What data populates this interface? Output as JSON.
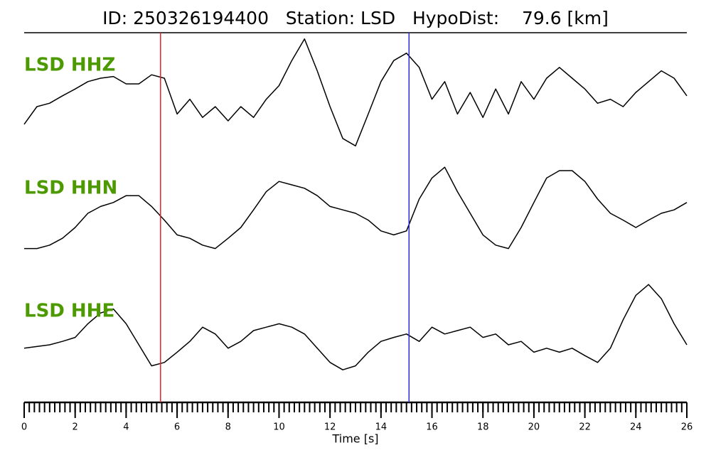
{
  "chart_data": {
    "type": "line",
    "title": "ID: 250326194400   Station: LSD   HypoDist:    79.6 [km]",
    "xlabel": "Time [s]",
    "xlim": [
      0,
      26
    ],
    "xticks": [
      0,
      2,
      4,
      6,
      8,
      10,
      12,
      14,
      16,
      18,
      20,
      22,
      24,
      26
    ],
    "xminorticks": [
      0,
      0.2,
      0.4,
      0.6,
      0.8,
      1,
      1.2,
      1.4,
      1.6,
      1.8,
      2,
      2.2,
      2.4,
      2.6,
      2.8,
      3,
      3.2,
      3.4,
      3.6,
      3.8,
      4,
      4.2,
      4.4,
      4.6,
      4.8,
      5,
      5.2,
      5.4,
      5.6,
      5.8,
      6,
      6.2,
      6.4,
      6.6,
      6.8,
      7,
      7.2,
      7.4,
      7.6,
      7.8,
      8,
      8.2,
      8.4,
      8.6,
      8.8,
      9,
      9.2,
      9.4,
      9.6,
      9.8,
      10,
      10.2,
      10.4,
      10.6,
      10.8,
      11,
      11.2,
      11.4,
      11.6,
      11.8,
      12,
      12.2,
      12.4,
      12.6,
      12.8,
      13,
      13.2,
      13.4,
      13.6,
      13.8,
      14,
      14.2,
      14.4,
      14.6,
      14.8,
      15,
      15.2,
      15.4,
      15.6,
      15.8,
      16,
      16.2,
      16.4,
      16.6,
      16.8,
      17,
      17.2,
      17.4,
      17.6,
      17.8,
      18,
      18.2,
      18.4,
      18.6,
      18.8,
      19,
      19.2,
      19.4,
      19.6,
      19.8,
      20,
      20.2,
      20.4,
      20.6,
      20.8,
      21,
      21.2,
      21.4,
      21.6,
      21.8,
      22,
      22.2,
      22.4,
      22.6,
      22.8,
      23,
      23.2,
      23.4,
      23.6,
      23.8,
      24,
      24.2,
      24.4,
      24.6,
      24.8,
      25,
      25.2,
      25.4,
      25.6,
      25.8,
      26
    ],
    "ylim": [
      -1.1,
      1.1
    ],
    "vlines": [
      {
        "x": 5.35,
        "color": "#e8202a"
      },
      {
        "x": 15.1,
        "color": "#2a2ad0"
      }
    ],
    "label_color": "#4c9a00",
    "x": [
      0,
      0.5,
      1,
      1.5,
      2,
      2.5,
      3,
      3.5,
      4,
      4.5,
      5,
      5.5,
      6,
      6.5,
      7,
      7.5,
      8,
      8.5,
      9,
      9.5,
      10,
      10.5,
      11,
      11.5,
      12,
      12.5,
      13,
      13.5,
      14,
      14.5,
      15,
      15.5,
      16,
      16.5,
      17,
      17.5,
      18,
      18.5,
      19,
      19.5,
      20,
      20.5,
      21,
      21.5,
      22,
      22.5,
      23,
      23.5,
      24,
      24.5,
      25,
      25.5,
      26
    ],
    "series": [
      {
        "name": "LSD HHZ",
        "color": "#000000",
        "values": [
          -0.56,
          -0.25,
          -0.19,
          -0.06,
          0.06,
          0.19,
          0.25,
          0.28,
          0.15,
          0.15,
          0.31,
          0.25,
          -0.38,
          -0.12,
          -0.44,
          -0.25,
          -0.5,
          -0.25,
          -0.44,
          -0.12,
          0.12,
          0.56,
          0.94,
          0.38,
          -0.25,
          -0.81,
          -0.94,
          -0.38,
          0.19,
          0.56,
          0.69,
          0.44,
          -0.12,
          0.19,
          -0.38,
          0,
          -0.44,
          0.06,
          -0.38,
          0.19,
          -0.12,
          0.25,
          0.44,
          0.25,
          0.06,
          -0.19,
          -0.12,
          -0.25,
          0,
          0.19,
          0.38,
          0.25,
          -0.06
        ]
      },
      {
        "name": "LSD HHN",
        "color": "#000000",
        "values": [
          -0.62,
          -0.62,
          -0.56,
          -0.44,
          -0.25,
          0,
          0.12,
          0.19,
          0.31,
          0.31,
          0.12,
          -0.12,
          -0.38,
          -0.44,
          -0.56,
          -0.62,
          -0.44,
          -0.25,
          0.06,
          0.38,
          0.56,
          0.5,
          0.44,
          0.31,
          0.12,
          0.06,
          0,
          -0.12,
          -0.31,
          -0.38,
          -0.31,
          0.25,
          0.62,
          0.81,
          0.38,
          0,
          -0.38,
          -0.56,
          -0.62,
          -0.25,
          0.19,
          0.62,
          0.75,
          0.75,
          0.56,
          0.25,
          0,
          -0.12,
          -0.25,
          -0.12,
          0,
          0.06,
          0.19
        ]
      },
      {
        "name": "LSD HHE",
        "color": "#000000",
        "values": [
          -0.31,
          -0.28,
          -0.25,
          -0.19,
          -0.12,
          0.12,
          0.31,
          0.38,
          0.12,
          -0.25,
          -0.62,
          -0.56,
          -0.38,
          -0.19,
          0.06,
          -0.06,
          -0.31,
          -0.19,
          0,
          0.06,
          0.12,
          0.06,
          -0.06,
          -0.31,
          -0.56,
          -0.69,
          -0.62,
          -0.38,
          -0.19,
          -0.12,
          -0.06,
          -0.19,
          0.06,
          -0.06,
          0,
          0.06,
          -0.12,
          -0.06,
          -0.25,
          -0.19,
          -0.38,
          -0.31,
          -0.38,
          -0.31,
          -0.44,
          -0.56,
          -0.31,
          0.19,
          0.62,
          0.81,
          0.56,
          0.12,
          -0.25
        ]
      }
    ]
  }
}
